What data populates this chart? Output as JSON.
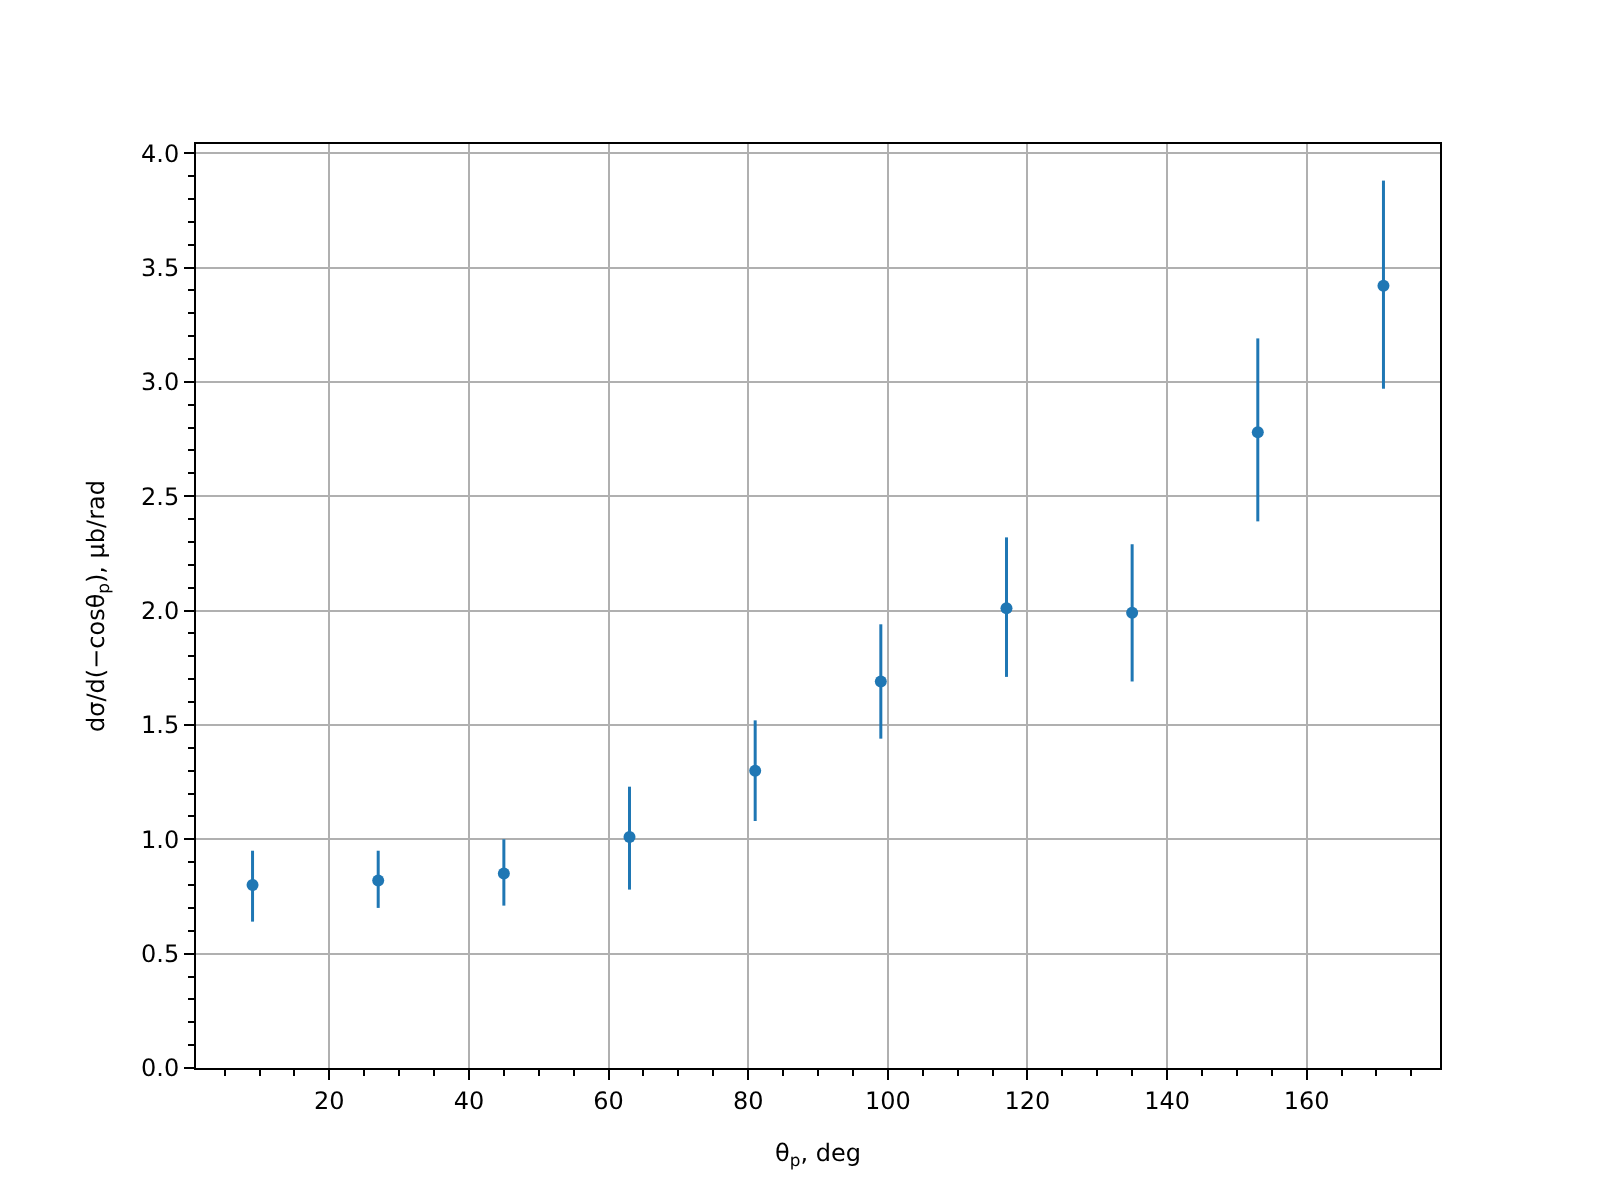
{
  "chart_data": {
    "type": "scatter",
    "xlabel": "θ$_{p}$, deg",
    "ylabel": "dσ/d(−cosθ$_{p}$), μb/rad",
    "x": [
      9,
      27,
      45,
      63,
      81,
      99,
      117,
      135,
      153,
      171
    ],
    "series": [
      {
        "color": "#1f77b4",
        "values": [
          0.8,
          0.82,
          0.85,
          1.01,
          1.3,
          1.69,
          2.01,
          1.99,
          2.78,
          3.42
        ],
        "errors": [
          [
            0.64,
            0.95
          ],
          [
            0.7,
            0.95
          ],
          [
            0.71,
            1.0
          ],
          [
            0.78,
            1.23
          ],
          [
            1.08,
            1.52
          ],
          [
            1.44,
            1.94
          ],
          [
            1.71,
            2.32
          ],
          [
            1.69,
            2.29
          ],
          [
            2.39,
            3.19
          ],
          [
            2.97,
            3.88
          ]
        ]
      }
    ],
    "xlim": [
      0.9,
      179.1
    ],
    "xticks": [
      20,
      40,
      60,
      80,
      100,
      120,
      140,
      160
    ],
    "ylim": [
      0,
      4.04
    ],
    "yticks": [
      {
        "value": 0,
        "label": "0.0"
      },
      {
        "value": 0.5,
        "label": "0.5"
      },
      {
        "value": 1,
        "label": "1.0"
      },
      {
        "value": 1.5,
        "label": "1.5"
      },
      {
        "value": 2,
        "label": "2.0"
      },
      {
        "value": 2.5,
        "label": "2.5"
      },
      {
        "value": 3,
        "label": "3.0"
      },
      {
        "value": 3.5,
        "label": "3.5"
      },
      {
        "value": 4,
        "label": "4.0"
      }
    ],
    "grid": true,
    "marker": "circle",
    "legend": false
  }
}
